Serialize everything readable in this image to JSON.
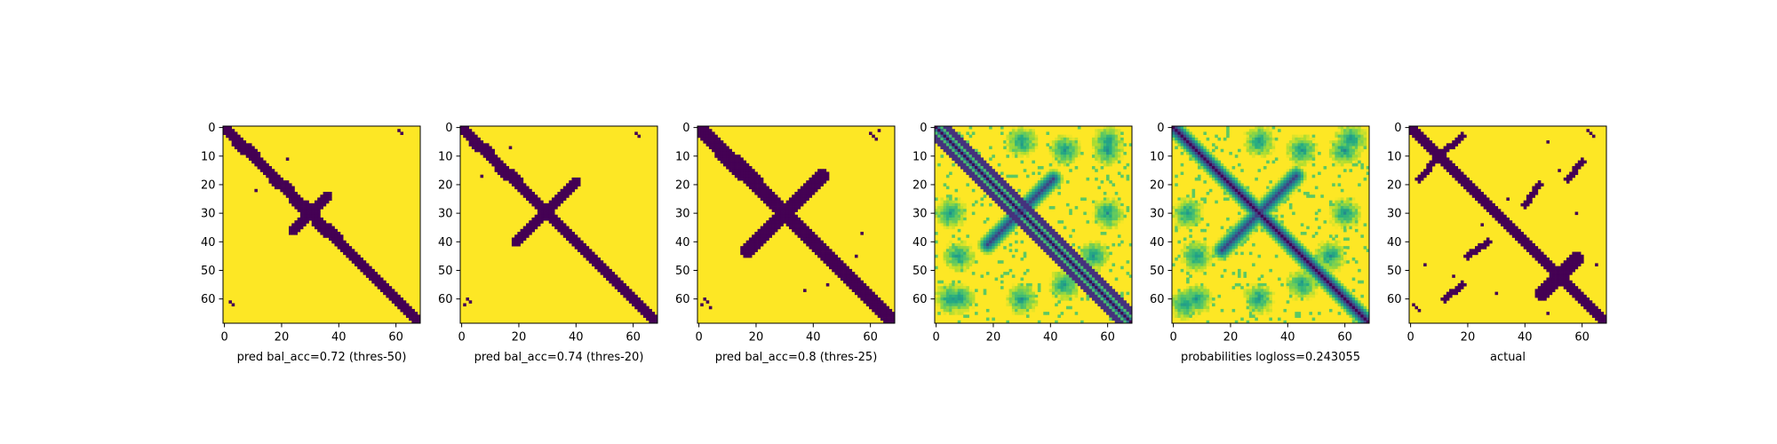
{
  "figure": {
    "background": "#ffffff",
    "colormap": "viridis",
    "colors": {
      "low": "#440154",
      "high": "#fde725",
      "axis": "#000000"
    }
  },
  "chart_data": [
    {
      "type": "heatmap",
      "xlabel": "pred bal_acc=0.72 (thres-50)",
      "xticks": [
        0,
        20,
        40,
        60
      ],
      "yticks": [
        0,
        10,
        20,
        30,
        40,
        50,
        60
      ],
      "xlim": [
        0,
        69
      ],
      "ylim": [
        69,
        0
      ],
      "value_range": [
        0,
        1
      ],
      "binary": true,
      "matrix_size": 69,
      "features": {
        "diagonal_halfwidth": 1.6,
        "dash_blocks": [
          [
            6,
            9
          ],
          [
            19,
            21
          ],
          [
            26,
            30
          ],
          [
            34,
            38
          ]
        ],
        "crossing_streak": {
          "center": [
            30,
            30
          ],
          "extent": [
            [
              36,
              24
            ],
            [
              24,
              36
            ]
          ],
          "halfwidth": 1.2
        },
        "specks": [
          [
            22,
            11
          ],
          [
            11,
            22
          ],
          [
            61,
            2
          ],
          [
            62,
            3
          ],
          [
            1,
            61
          ],
          [
            2,
            62
          ]
        ]
      }
    },
    {
      "type": "heatmap",
      "xlabel": "pred bal_acc=0.74 (thres-20)",
      "xticks": [
        0,
        20,
        40,
        60
      ],
      "yticks": [
        0,
        10,
        20,
        30,
        40,
        50,
        60
      ],
      "xlim": [
        0,
        69
      ],
      "ylim": [
        69,
        0
      ],
      "value_range": [
        0,
        1
      ],
      "binary": true,
      "matrix_size": 69,
      "features": {
        "diagonal_halfwidth": 2.0,
        "dash_blocks": [
          [
            6,
            8
          ],
          [
            15,
            18
          ]
        ],
        "crossing_streak": {
          "center": [
            30,
            30
          ],
          "extent": [
            [
              40,
              19
            ],
            [
              19,
              40
            ]
          ],
          "halfwidth": 1.6
        },
        "specks": [
          [
            17,
            7
          ],
          [
            7,
            17
          ],
          [
            60,
            2
          ],
          [
            61,
            3
          ],
          [
            62,
            1
          ],
          [
            2,
            61
          ],
          [
            3,
            62
          ]
        ]
      }
    },
    {
      "type": "heatmap",
      "xlabel": "pred bal_acc=0.8 (thres-25)",
      "xticks": [
        0,
        20,
        40,
        60
      ],
      "yticks": [
        0,
        10,
        20,
        30,
        40,
        50,
        60
      ],
      "xlim": [
        0,
        69
      ],
      "ylim": [
        69,
        0
      ],
      "value_range": [
        0,
        1
      ],
      "binary": true,
      "matrix_size": 69,
      "features": {
        "diagonal_halfwidth": 2.6,
        "dash_blocks": [
          [
            10,
            15
          ],
          [
            12,
            18
          ]
        ],
        "crossing_streak": {
          "center": [
            30,
            30
          ],
          "extent": [
            [
              43,
              17
            ],
            [
              17,
              43
            ]
          ],
          "halfwidth": 2.2
        },
        "specks": [
          [
            60,
            2
          ],
          [
            61,
            3
          ],
          [
            62,
            1
          ],
          [
            63,
            4
          ],
          [
            2,
            60
          ],
          [
            3,
            61
          ],
          [
            1,
            63
          ],
          [
            4,
            62
          ],
          [
            45,
            55
          ],
          [
            55,
            45
          ],
          [
            37,
            57
          ],
          [
            57,
            37
          ]
        ]
      }
    },
    {
      "type": "heatmap",
      "xlabel": "",
      "xticks": [
        0,
        20,
        40,
        60
      ],
      "yticks": [
        0,
        10,
        20,
        30,
        40,
        50,
        60
      ],
      "xlim": [
        0,
        69
      ],
      "ylim": [
        69,
        0
      ],
      "value_range": [
        0,
        1
      ],
      "binary": false,
      "matrix_size": 69,
      "features": {
        "diagonal_halfwidth": 0.8,
        "parallel_offsets": [
          4,
          -4
        ],
        "crossing_streak": {
          "center": [
            30,
            30
          ],
          "extent": [
            [
              41,
              18
            ],
            [
              18,
              41
            ]
          ],
          "halfwidth": 2.5
        },
        "blobs": [
          [
            5,
            30
          ],
          [
            30,
            5
          ],
          [
            8,
            60
          ],
          [
            60,
            8
          ],
          [
            5,
            60
          ],
          [
            60,
            5
          ],
          [
            45,
            8
          ],
          [
            8,
            45
          ],
          [
            55,
            45
          ],
          [
            45,
            55
          ],
          [
            60,
            30
          ],
          [
            30,
            60
          ]
        ]
      }
    },
    {
      "type": "heatmap",
      "xlabel": "probabilities logloss=0.243055",
      "xticks": [
        0,
        20,
        40,
        60
      ],
      "yticks": [
        0,
        10,
        20,
        30,
        40,
        50,
        60
      ],
      "xlim": [
        0,
        69
      ],
      "ylim": [
        69,
        0
      ],
      "value_range": [
        0,
        1
      ],
      "binary": false,
      "matrix_size": 69,
      "features": {
        "diagonal_halfwidth": 2.2,
        "crossing_streak": {
          "center": [
            30,
            30
          ],
          "extent": [
            [
              43,
              17
            ],
            [
              17,
              43
            ]
          ],
          "halfwidth": 2.6
        },
        "blobs": [
          [
            5,
            30
          ],
          [
            30,
            5
          ],
          [
            8,
            60
          ],
          [
            60,
            8
          ],
          [
            45,
            8
          ],
          [
            8,
            45
          ],
          [
            55,
            45
          ],
          [
            45,
            55
          ],
          [
            60,
            30
          ],
          [
            30,
            60
          ],
          [
            62,
            4
          ],
          [
            4,
            62
          ]
        ]
      }
    },
    {
      "type": "heatmap",
      "xlabel": "actual",
      "xticks": [
        0,
        20,
        40,
        60
      ],
      "yticks": [
        0,
        10,
        20,
        30,
        40,
        50,
        60
      ],
      "xlim": [
        0,
        69
      ],
      "ylim": [
        69,
        0
      ],
      "value_range": [
        0,
        1
      ],
      "binary": true,
      "matrix_size": 69,
      "features": {
        "diagonal_halfwidth": 1.8,
        "crossing_streak": {
          "center": [
            52,
            52
          ],
          "extent": [
            [
              58,
              46
            ],
            [
              46,
              58
            ]
          ],
          "halfwidth": 2.0
        },
        "extra_streaks": [
          [
            [
              3,
              18
            ],
            [
              10,
              10
            ]
          ],
          [
            [
              18,
              3
            ],
            [
              10,
              10
            ]
          ],
          [
            [
              45,
              20
            ],
            [
              40,
              27
            ]
          ],
          [
            [
              20,
              45
            ],
            [
              27,
              40
            ]
          ],
          [
            [
              60,
              12
            ],
            [
              55,
              18
            ]
          ],
          [
            [
              12,
              60
            ],
            [
              18,
              55
            ]
          ]
        ],
        "specks": [
          [
            62,
            1
          ],
          [
            63,
            2
          ],
          [
            64,
            3
          ],
          [
            1,
            62
          ],
          [
            2,
            63
          ],
          [
            3,
            64
          ],
          [
            5,
            48
          ],
          [
            48,
            5
          ],
          [
            58,
            30
          ],
          [
            30,
            58
          ],
          [
            25,
            34
          ],
          [
            34,
            25
          ],
          [
            48,
            65
          ],
          [
            65,
            48
          ],
          [
            52,
            15
          ],
          [
            15,
            52
          ]
        ]
      }
    }
  ]
}
